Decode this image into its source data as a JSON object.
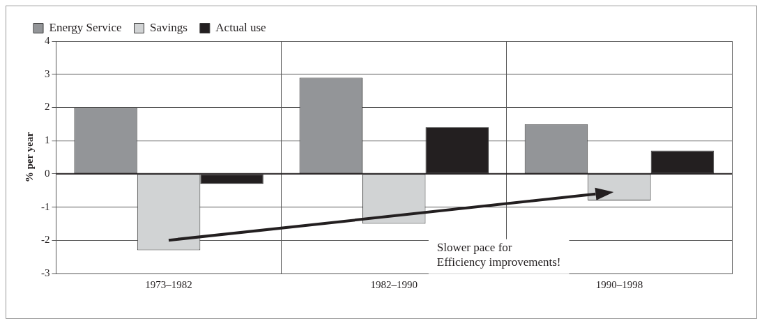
{
  "chart_data": {
    "type": "bar",
    "ylabel": "% per year",
    "categories": [
      "1973–1982",
      "1982–1990",
      "1990–1998"
    ],
    "series": [
      {
        "name": "Energy Service",
        "color": "#939598",
        "values": [
          2.0,
          2.9,
          1.5
        ]
      },
      {
        "name": "Savings",
        "color": "#d1d3d4",
        "values": [
          -2.3,
          -1.5,
          -0.8
        ]
      },
      {
        "name": "Actual use",
        "color": "#231f20",
        "values": [
          -0.3,
          1.4,
          0.7
        ]
      }
    ],
    "ylim": [
      -3,
      4
    ],
    "yticks": [
      -3,
      -2,
      -1,
      0,
      1,
      2,
      3,
      4
    ],
    "grid": true,
    "legend": "top left",
    "annotations": [
      "Slower pace for\nEfficiency improvements!"
    ]
  }
}
